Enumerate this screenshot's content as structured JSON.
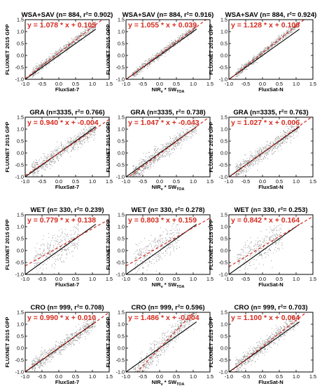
{
  "figure": {
    "ylabel": "FLUXNET 2015 GPP",
    "xlabels": {
      "col1": "FluxSat-7",
      "col2_main": "NIR",
      "col2_sub_v": "v",
      "col2_mid": " * SW",
      "col2_sub_toa": "TOA",
      "col3": "FluxSat-N"
    }
  },
  "axes": {
    "x_ticks": [
      "-1.0",
      "-0.5",
      "0.0",
      "0.5",
      "1.0",
      "1.5"
    ],
    "y_ticks": [
      "-1.0",
      "-0.5",
      "0.0",
      "0.5",
      "1.0",
      "1.5"
    ],
    "xlim": [
      -1.0,
      1.5
    ],
    "ylim": [
      -1.0,
      1.5
    ]
  },
  "colors": {
    "points": "#8a8a8a",
    "one_to_one": "#000000",
    "regression": "#d62a1e",
    "title": "#000000"
  },
  "chart_data": [
    {
      "type": "scatter",
      "row": 0,
      "col": 0,
      "group": "WSA+SAV",
      "title": "WSA+SAV (n= 884, r²= 0.902)",
      "equation": "y = 1.078 * x + 0.105",
      "n": 884,
      "r2": 0.902,
      "slope": 1.078,
      "intercept": 0.105,
      "spread": 0.08
    },
    {
      "type": "scatter",
      "row": 0,
      "col": 1,
      "group": "WSA+SAV",
      "title": "WSA+SAV (n= 884, r²= 0.916)",
      "equation": "y = 1.055 * x + 0.039",
      "n": 884,
      "r2": 0.916,
      "slope": 1.055,
      "intercept": 0.039,
      "spread": 0.08
    },
    {
      "type": "scatter",
      "row": 0,
      "col": 2,
      "group": "WSA+SAV",
      "title": "WSA+SAV (n= 884, r²= 0.924)",
      "equation": "y = 1.128 * x + 0.106",
      "n": 884,
      "r2": 0.924,
      "slope": 1.128,
      "intercept": 0.106,
      "spread": 0.07
    },
    {
      "type": "scatter",
      "row": 1,
      "col": 0,
      "group": "GRA",
      "title": "GRA (n=3335, r²= 0.766)",
      "equation": "y = 0.940 * x + -0.004",
      "n": 3335,
      "r2": 0.766,
      "slope": 0.94,
      "intercept": -0.004,
      "spread": 0.16
    },
    {
      "type": "scatter",
      "row": 1,
      "col": 1,
      "group": "GRA",
      "title": "GRA (n=3335, r²= 0.738)",
      "equation": "y = 1.047 * x + -0.043",
      "n": 3335,
      "r2": 0.738,
      "slope": 1.047,
      "intercept": -0.043,
      "spread": 0.17
    },
    {
      "type": "scatter",
      "row": 1,
      "col": 2,
      "group": "GRA",
      "title": "GRA (n=3335, r²= 0.763)",
      "equation": "y = 1.027 * x + 0.006",
      "n": 3335,
      "r2": 0.763,
      "slope": 1.027,
      "intercept": 0.006,
      "spread": 0.16
    },
    {
      "type": "scatter",
      "row": 2,
      "col": 0,
      "group": "WET",
      "title": "WET (n= 330, r²= 0.239)",
      "equation": "y = 0.779 * x + 0.138",
      "n": 330,
      "r2": 0.239,
      "slope": 0.779,
      "intercept": 0.138,
      "spread": 0.32
    },
    {
      "type": "scatter",
      "row": 2,
      "col": 1,
      "group": "WET",
      "title": "WET (n= 330, r²= 0.278)",
      "equation": "y = 0.803 * x + 0.159",
      "n": 330,
      "r2": 0.278,
      "slope": 0.803,
      "intercept": 0.159,
      "spread": 0.31
    },
    {
      "type": "scatter",
      "row": 2,
      "col": 2,
      "group": "WET",
      "title": "WET (n= 330, r²= 0.253)",
      "equation": "y = 0.842 * x + 0.164",
      "n": 330,
      "r2": 0.253,
      "slope": 0.842,
      "intercept": 0.164,
      "spread": 0.32
    },
    {
      "type": "scatter",
      "row": 3,
      "col": 0,
      "group": "CRO",
      "title": "CRO (n= 999, r²= 0.708)",
      "equation": "y = 0.990 * x + 0.010",
      "n": 999,
      "r2": 0.708,
      "slope": 0.99,
      "intercept": 0.01,
      "spread": 0.15
    },
    {
      "type": "scatter",
      "row": 3,
      "col": 1,
      "group": "CRO",
      "title": "CRO (n= 999, r²= 0.596)",
      "equation": "y = 1.486 * x + -0.004",
      "n": 999,
      "r2": 0.596,
      "slope": 1.486,
      "intercept": -0.004,
      "spread": 0.22
    },
    {
      "type": "scatter",
      "row": 3,
      "col": 2,
      "group": "CRO",
      "title": "CRO (n= 999, r²= 0.703)",
      "equation": "y = 1.100 * x + 0.064",
      "n": 999,
      "r2": 0.703,
      "slope": 1.1,
      "intercept": 0.064,
      "spread": 0.16
    }
  ]
}
